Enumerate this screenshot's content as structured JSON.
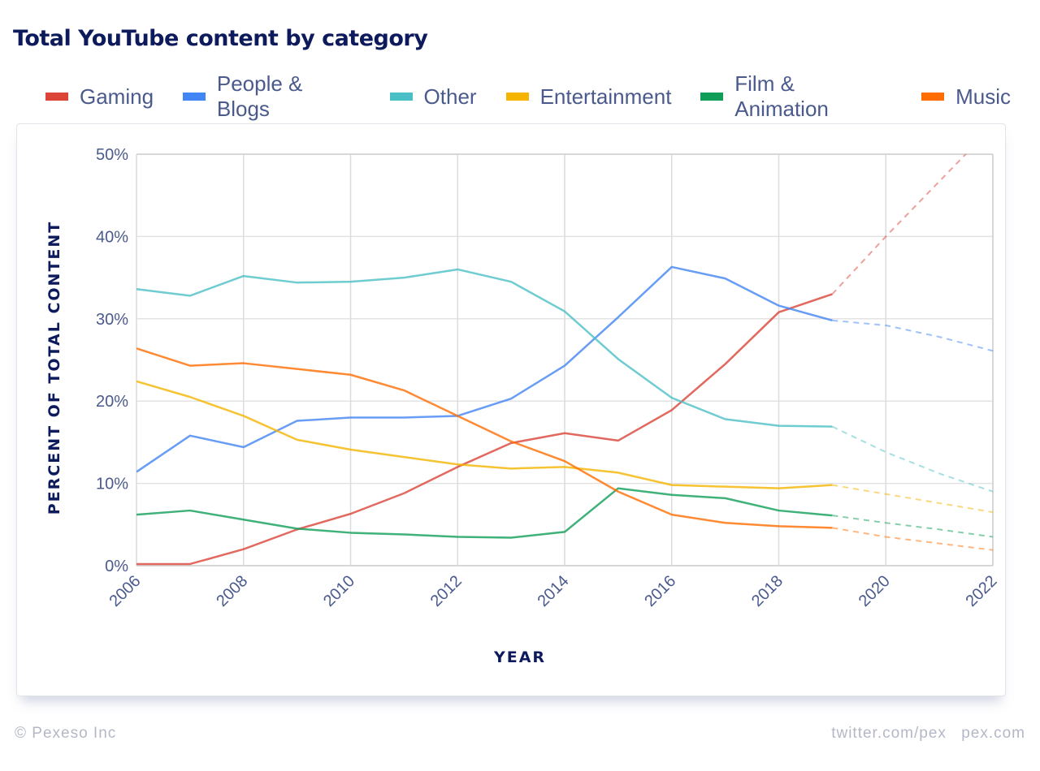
{
  "chart_data": {
    "type": "line",
    "title": "Total YouTube content by category",
    "xlabel": "YEAR",
    "ylabel": "PERCENT OF TOTAL CONTENT",
    "xlim": [
      2006,
      2022
    ],
    "ylim": [
      0,
      50
    ],
    "x_ticks": [
      "2006",
      "2008",
      "2010",
      "2012",
      "2014",
      "2016",
      "2018",
      "2020",
      "2022"
    ],
    "y_ticks": [
      "0%",
      "10%",
      "20%",
      "30%",
      "40%",
      "50%"
    ],
    "grid": true,
    "legend_position": "top",
    "x": [
      2006,
      2007,
      2008,
      2009,
      2010,
      2011,
      2012,
      2013,
      2014,
      2015,
      2016,
      2017,
      2018,
      2019
    ],
    "projection_x": [
      2019,
      2020,
      2021,
      2022
    ],
    "series": [
      {
        "name": "Gaming",
        "color": "#db4437",
        "values": [
          0.2,
          0.2,
          2.0,
          4.4,
          6.3,
          8.8,
          12.0,
          14.9,
          16.1,
          15.2,
          18.9,
          24.5,
          30.8,
          33.0
        ],
        "projection": [
          33.0,
          40.0,
          46.7,
          53.4
        ]
      },
      {
        "name": "People & Blogs",
        "color": "#4285f4",
        "values": [
          11.4,
          15.8,
          14.4,
          17.6,
          18.0,
          18.0,
          18.2,
          20.3,
          24.3,
          30.2,
          36.3,
          34.9,
          31.6,
          29.8
        ],
        "projection": [
          29.8,
          29.2,
          27.8,
          26.1
        ]
      },
      {
        "name": "Other",
        "color": "#4bbfc6",
        "values": [
          33.6,
          32.8,
          35.2,
          34.4,
          34.5,
          35.0,
          36.0,
          34.5,
          30.9,
          25.1,
          20.4,
          17.8,
          17.0,
          16.9
        ],
        "projection": [
          16.9,
          13.8,
          11.2,
          9.0
        ]
      },
      {
        "name": "Entertainment",
        "color": "#f4b400",
        "values": [
          22.4,
          20.5,
          18.2,
          15.3,
          14.1,
          13.2,
          12.3,
          11.8,
          12.0,
          11.3,
          9.8,
          9.6,
          9.4,
          9.8
        ],
        "projection": [
          9.8,
          8.7,
          7.6,
          6.5
        ]
      },
      {
        "name": "Film & Animation",
        "color": "#0f9d58",
        "values": [
          6.2,
          6.7,
          5.6,
          4.5,
          4.0,
          3.8,
          3.5,
          3.4,
          4.1,
          9.4,
          8.6,
          8.2,
          6.7,
          6.1
        ],
        "projection": [
          6.1,
          5.2,
          4.4,
          3.5
        ]
      },
      {
        "name": "Music",
        "color": "#ff6d00",
        "values": [
          26.4,
          24.3,
          24.6,
          23.9,
          23.2,
          21.3,
          18.2,
          15.1,
          12.7,
          9.0,
          6.2,
          5.2,
          4.8,
          4.6
        ],
        "projection": [
          4.6,
          3.5,
          2.7,
          1.9
        ]
      }
    ]
  },
  "footer": {
    "copyright": "© Pexeso Inc",
    "links": "twitter.com/pex pex.com"
  }
}
